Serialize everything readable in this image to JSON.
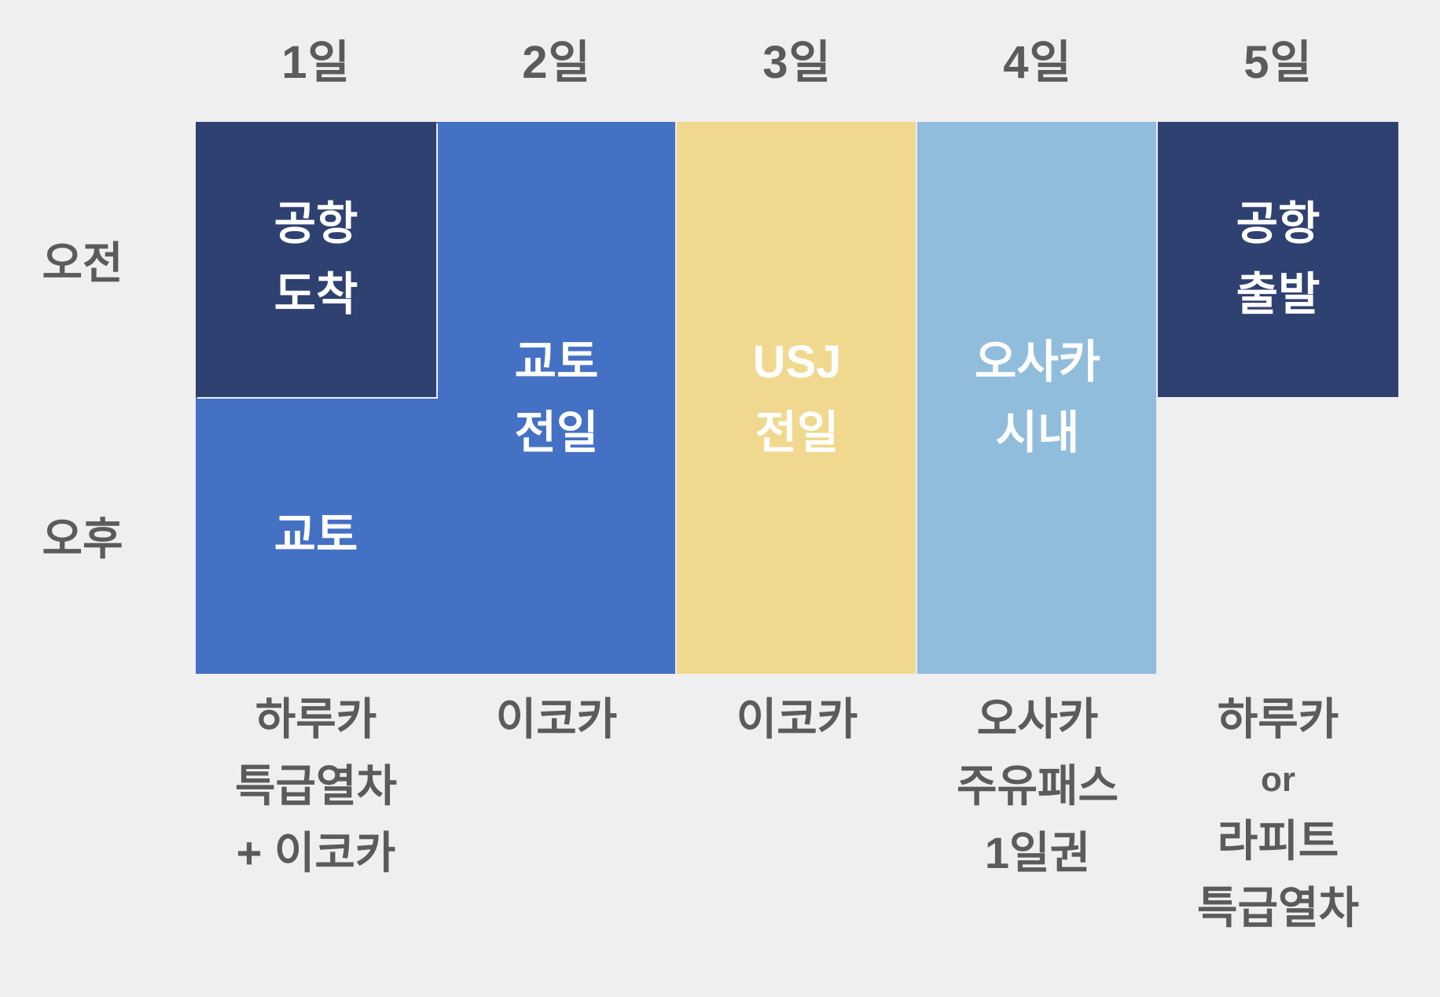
{
  "day_headers": [
    "1일",
    "2일",
    "3일",
    "4일",
    "5일"
  ],
  "row_labels": {
    "morning": "오전",
    "afternoon": "오후"
  },
  "schedule_blocks": {
    "day1_morning": "공항\n도착",
    "day1_afternoon": "교토",
    "day2_allday": "교토\n전일",
    "day3_allday": "USJ\n전일",
    "day4_allday": "오사카\n시내",
    "day5_morning": "공항\n출발"
  },
  "transport_labels": [
    {
      "lines": [
        "하루카",
        "특급열차",
        "+ 이코카"
      ]
    },
    {
      "lines": [
        "이코카"
      ]
    },
    {
      "lines": [
        "이코카"
      ]
    },
    {
      "lines": [
        "오사카",
        "주유패스",
        "1일권"
      ]
    },
    {
      "lines": [
        "하루카",
        "or",
        "라피트",
        "특급열차"
      ]
    }
  ],
  "colors": {
    "background": "#EFEFEF",
    "navy": "#2F4170",
    "blue": "#4571C4",
    "yellow": "#F0D98E",
    "light_blue": "#91BDDD",
    "label_text": "#5B5B5B",
    "block_text": "#FFFFFF"
  }
}
